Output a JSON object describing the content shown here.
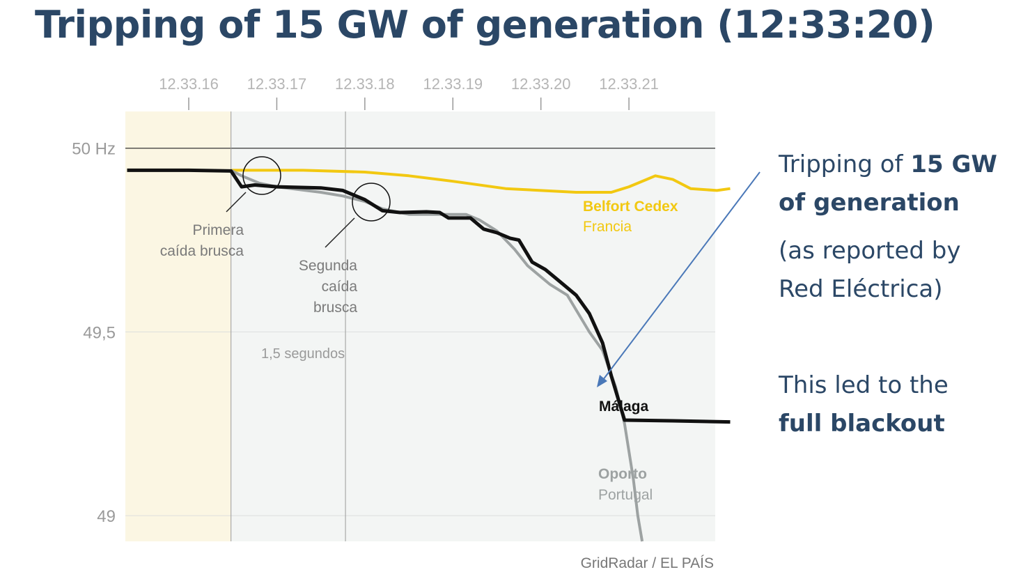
{
  "slide": {
    "title": "Tripping of 15 GW of generation (12:33:20)",
    "callout_prefix": "Tripping of ",
    "callout_bold_1": "15 GW",
    "callout_bold_2": "of generation",
    "callout_line_3": "(as reported by",
    "callout_line_4": "Red Eléctrica)",
    "conclusion_line_1": "This led to the",
    "conclusion_bold": "full blackout",
    "colors": {
      "title": "#2b4766",
      "arrow": "#4a78b8"
    }
  },
  "chart_data": {
    "type": "line",
    "x_ticks": [
      "12.33.16",
      "12.33.17",
      "12.33.18",
      "12.33.19",
      "12.33.20",
      "12.33.21"
    ],
    "y_ticks": [
      {
        "value": 50,
        "label": "50 Hz"
      },
      {
        "value": 49.5,
        "label": "49,5"
      },
      {
        "value": 49,
        "label": "49"
      }
    ],
    "xlim": [
      "12:33:15.28",
      "12:33:21.98"
    ],
    "ylim": [
      48.93,
      50.1
    ],
    "grid": true,
    "shaded_region": {
      "from": "12:33:15.28",
      "to": "12:33:16.48",
      "color": "#fbf6e3"
    },
    "background_color": "#f3f5f4",
    "series": [
      {
        "name": "Belfort Cedex",
        "sublabel": "Francia",
        "color": "#f2c811",
        "width": 4,
        "points": [
          [
            16.48,
            49.94
          ],
          [
            17.3,
            49.94
          ],
          [
            18.0,
            49.935
          ],
          [
            18.5,
            49.925
          ],
          [
            19.0,
            49.91
          ],
          [
            19.6,
            49.89
          ],
          [
            20.0,
            49.885
          ],
          [
            20.4,
            49.88
          ],
          [
            20.8,
            49.88
          ],
          [
            21.0,
            49.895
          ],
          [
            21.2,
            49.915
          ],
          [
            21.3,
            49.925
          ],
          [
            21.5,
            49.915
          ],
          [
            21.7,
            49.89
          ],
          [
            22.0,
            49.885
          ],
          [
            22.15,
            49.89
          ]
        ]
      },
      {
        "name": "Oporto",
        "sublabel": "Portugal",
        "color": "#9da2a2",
        "width": 4,
        "points": [
          [
            16.48,
            49.94
          ],
          [
            16.6,
            49.925
          ],
          [
            16.8,
            49.905
          ],
          [
            17.0,
            49.895
          ],
          [
            17.5,
            49.88
          ],
          [
            17.75,
            49.87
          ],
          [
            18.0,
            49.855
          ],
          [
            18.2,
            49.835
          ],
          [
            18.5,
            49.82
          ],
          [
            18.85,
            49.82
          ],
          [
            19.0,
            49.82
          ],
          [
            19.15,
            49.82
          ],
          [
            19.3,
            49.805
          ],
          [
            19.5,
            49.775
          ],
          [
            19.7,
            49.725
          ],
          [
            19.85,
            49.68
          ],
          [
            20.1,
            49.63
          ],
          [
            20.3,
            49.6
          ],
          [
            20.55,
            49.5
          ],
          [
            20.7,
            49.45
          ],
          [
            20.85,
            49.35
          ],
          [
            20.95,
            49.25
          ],
          [
            21.05,
            49.1
          ],
          [
            21.1,
            49.0
          ],
          [
            21.15,
            48.93
          ]
        ]
      },
      {
        "name": "Málaga",
        "sublabel": "",
        "color": "#111111",
        "width": 5,
        "points": [
          [
            15.3,
            49.94
          ],
          [
            16.0,
            49.94
          ],
          [
            16.48,
            49.938
          ],
          [
            16.6,
            49.895
          ],
          [
            16.75,
            49.9
          ],
          [
            17.0,
            49.895
          ],
          [
            17.5,
            49.892
          ],
          [
            17.75,
            49.885
          ],
          [
            18.0,
            49.86
          ],
          [
            18.2,
            49.83
          ],
          [
            18.4,
            49.825
          ],
          [
            18.7,
            49.827
          ],
          [
            18.85,
            49.825
          ],
          [
            18.95,
            49.81
          ],
          [
            19.2,
            49.81
          ],
          [
            19.35,
            49.78
          ],
          [
            19.5,
            49.77
          ],
          [
            19.65,
            49.755
          ],
          [
            19.75,
            49.75
          ],
          [
            19.9,
            49.69
          ],
          [
            20.05,
            49.67
          ],
          [
            20.2,
            49.64
          ],
          [
            20.4,
            49.6
          ],
          [
            20.55,
            49.55
          ],
          [
            20.7,
            49.47
          ],
          [
            20.8,
            49.38
          ],
          [
            20.95,
            49.26
          ],
          [
            21.5,
            49.258
          ],
          [
            22.15,
            49.255
          ]
        ]
      }
    ],
    "annotations": {
      "first_drop": "Primera\ncaída brusca",
      "second_drop": "Segunda\ncaída\nbrusca",
      "interval": "1,5 segundos"
    },
    "source": "GridRadar / EL PAÍS"
  }
}
